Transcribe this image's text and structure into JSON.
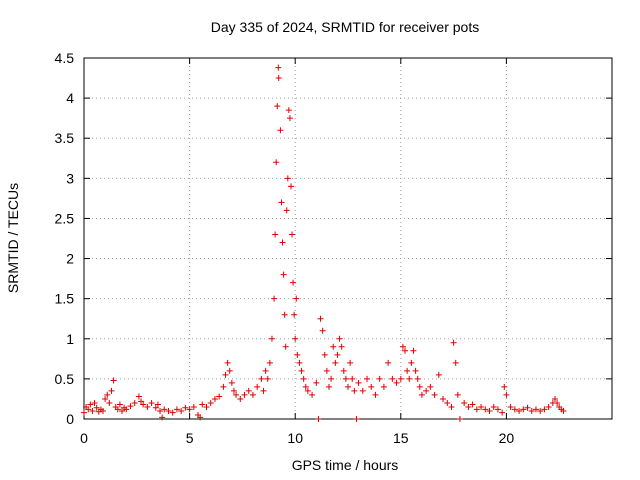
{
  "chart_data": {
    "type": "scatter",
    "title": "Day 335 of 2024, SRMTID for receiver pots",
    "xlabel": "GPS time / hours",
    "ylabel": "SRMTID / TECUs",
    "xlim": [
      0,
      25
    ],
    "ylim": [
      0,
      4.5
    ],
    "xticks": [
      0,
      5,
      10,
      15,
      20
    ],
    "xtick_labels": [
      "0",
      "5",
      "10",
      "15",
      "20"
    ],
    "yticks": [
      0,
      0.5,
      1,
      1.5,
      2,
      2.5,
      3,
      3.5,
      4,
      4.5
    ],
    "ytick_labels": [
      "0",
      "0.5",
      "1",
      "1.5",
      "2",
      "2.5",
      "3",
      "3.5",
      "4",
      "4.5"
    ],
    "grid": true,
    "marker": "+",
    "color": "#e00000",
    "series": [
      {
        "name": "pots",
        "points": [
          [
            0.0,
            0.08
          ],
          [
            0.1,
            0.15
          ],
          [
            0.2,
            0.12
          ],
          [
            0.3,
            0.18
          ],
          [
            0.4,
            0.1
          ],
          [
            0.5,
            0.2
          ],
          [
            0.6,
            0.14
          ],
          [
            0.7,
            0.09
          ],
          [
            0.8,
            0.12
          ],
          [
            0.9,
            0.1
          ],
          [
            1.0,
            0.25
          ],
          [
            1.1,
            0.3
          ],
          [
            1.2,
            0.2
          ],
          [
            1.3,
            0.35
          ],
          [
            1.4,
            0.48
          ],
          [
            1.5,
            0.15
          ],
          [
            1.6,
            0.12
          ],
          [
            1.7,
            0.18
          ],
          [
            1.8,
            0.1
          ],
          [
            1.9,
            0.14
          ],
          [
            2.0,
            0.12
          ],
          [
            2.2,
            0.16
          ],
          [
            2.4,
            0.2
          ],
          [
            2.6,
            0.28
          ],
          [
            2.7,
            0.22
          ],
          [
            2.8,
            0.18
          ],
          [
            3.0,
            0.15
          ],
          [
            3.2,
            0.2
          ],
          [
            3.4,
            0.14
          ],
          [
            3.5,
            0.18
          ],
          [
            3.6,
            0.1
          ],
          [
            3.7,
            0.02
          ],
          [
            3.8,
            0.12
          ],
          [
            4.0,
            0.1
          ],
          [
            4.2,
            0.08
          ],
          [
            4.4,
            0.12
          ],
          [
            4.6,
            0.1
          ],
          [
            4.8,
            0.14
          ],
          [
            5.0,
            0.12
          ],
          [
            5.2,
            0.15
          ],
          [
            5.4,
            0.05
          ],
          [
            5.5,
            0.02
          ],
          [
            5.6,
            0.18
          ],
          [
            5.8,
            0.15
          ],
          [
            6.0,
            0.2
          ],
          [
            6.2,
            0.25
          ],
          [
            6.4,
            0.28
          ],
          [
            6.6,
            0.4
          ],
          [
            6.7,
            0.55
          ],
          [
            6.8,
            0.7
          ],
          [
            6.9,
            0.6
          ],
          [
            7.0,
            0.45
          ],
          [
            7.1,
            0.35
          ],
          [
            7.2,
            0.3
          ],
          [
            7.4,
            0.25
          ],
          [
            7.6,
            0.3
          ],
          [
            7.8,
            0.35
          ],
          [
            8.0,
            0.3
          ],
          [
            8.2,
            0.4
          ],
          [
            8.4,
            0.5
          ],
          [
            8.5,
            0.35
          ],
          [
            8.6,
            0.6
          ],
          [
            8.7,
            0.5
          ],
          [
            8.8,
            0.7
          ],
          [
            8.9,
            1.0
          ],
          [
            9.0,
            1.5
          ],
          [
            9.05,
            2.3
          ],
          [
            9.1,
            3.2
          ],
          [
            9.15,
            3.9
          ],
          [
            9.2,
            4.38
          ],
          [
            9.22,
            4.25
          ],
          [
            9.3,
            3.6
          ],
          [
            9.35,
            2.7
          ],
          [
            9.4,
            2.2
          ],
          [
            9.45,
            1.8
          ],
          [
            9.5,
            1.3
          ],
          [
            9.55,
            0.9
          ],
          [
            9.6,
            2.6
          ],
          [
            9.65,
            3.0
          ],
          [
            9.7,
            3.85
          ],
          [
            9.75,
            3.75
          ],
          [
            9.8,
            2.9
          ],
          [
            9.85,
            2.3
          ],
          [
            9.9,
            1.7
          ],
          [
            9.95,
            1.3
          ],
          [
            10.0,
            1.0
          ],
          [
            10.05,
            1.5
          ],
          [
            10.1,
            0.8
          ],
          [
            10.2,
            0.7
          ],
          [
            10.3,
            0.6
          ],
          [
            10.4,
            0.5
          ],
          [
            10.5,
            0.4
          ],
          [
            10.6,
            0.35
          ],
          [
            10.8,
            0.3
          ],
          [
            11.0,
            0.45
          ],
          [
            11.1,
            0.0
          ],
          [
            11.2,
            1.25
          ],
          [
            11.3,
            1.1
          ],
          [
            11.4,
            0.8
          ],
          [
            11.5,
            0.6
          ],
          [
            11.6,
            0.4
          ],
          [
            11.7,
            0.5
          ],
          [
            11.8,
            0.9
          ],
          [
            11.9,
            0.7
          ],
          [
            12.0,
            0.8
          ],
          [
            12.1,
            1.0
          ],
          [
            12.2,
            0.9
          ],
          [
            12.3,
            0.6
          ],
          [
            12.4,
            0.5
          ],
          [
            12.5,
            0.4
          ],
          [
            12.6,
            0.7
          ],
          [
            12.7,
            0.5
          ],
          [
            12.8,
            0.35
          ],
          [
            12.9,
            0.0
          ],
          [
            13.0,
            0.45
          ],
          [
            13.2,
            0.35
          ],
          [
            13.4,
            0.5
          ],
          [
            13.6,
            0.4
          ],
          [
            13.8,
            0.3
          ],
          [
            14.0,
            0.5
          ],
          [
            14.2,
            0.4
          ],
          [
            14.4,
            0.7
          ],
          [
            14.6,
            0.5
          ],
          [
            14.8,
            0.45
          ],
          [
            15.0,
            0.5
          ],
          [
            15.1,
            0.9
          ],
          [
            15.2,
            0.85
          ],
          [
            15.3,
            0.6
          ],
          [
            15.4,
            0.5
          ],
          [
            15.5,
            0.7
          ],
          [
            15.6,
            0.85
          ],
          [
            15.7,
            0.6
          ],
          [
            15.8,
            0.5
          ],
          [
            15.9,
            0.4
          ],
          [
            16.0,
            0.3
          ],
          [
            16.2,
            0.35
          ],
          [
            16.4,
            0.4
          ],
          [
            16.6,
            0.3
          ],
          [
            16.8,
            0.55
          ],
          [
            17.0,
            0.25
          ],
          [
            17.2,
            0.2
          ],
          [
            17.4,
            0.15
          ],
          [
            17.5,
            0.95
          ],
          [
            17.6,
            0.7
          ],
          [
            17.7,
            0.3
          ],
          [
            17.8,
            0.0
          ],
          [
            18.0,
            0.2
          ],
          [
            18.2,
            0.15
          ],
          [
            18.4,
            0.18
          ],
          [
            18.6,
            0.12
          ],
          [
            18.8,
            0.15
          ],
          [
            19.0,
            0.12
          ],
          [
            19.2,
            0.1
          ],
          [
            19.4,
            0.15
          ],
          [
            19.6,
            0.12
          ],
          [
            19.8,
            0.08
          ],
          [
            19.9,
            0.4
          ],
          [
            20.0,
            0.3
          ],
          [
            20.2,
            0.15
          ],
          [
            20.4,
            0.12
          ],
          [
            20.6,
            0.1
          ],
          [
            20.8,
            0.12
          ],
          [
            21.0,
            0.14
          ],
          [
            21.2,
            0.1
          ],
          [
            21.4,
            0.12
          ],
          [
            21.6,
            0.1
          ],
          [
            21.8,
            0.12
          ],
          [
            22.0,
            0.15
          ],
          [
            22.2,
            0.2
          ],
          [
            22.3,
            0.25
          ],
          [
            22.4,
            0.2
          ],
          [
            22.5,
            0.15
          ],
          [
            22.6,
            0.12
          ],
          [
            22.7,
            0.1
          ]
        ]
      }
    ]
  }
}
